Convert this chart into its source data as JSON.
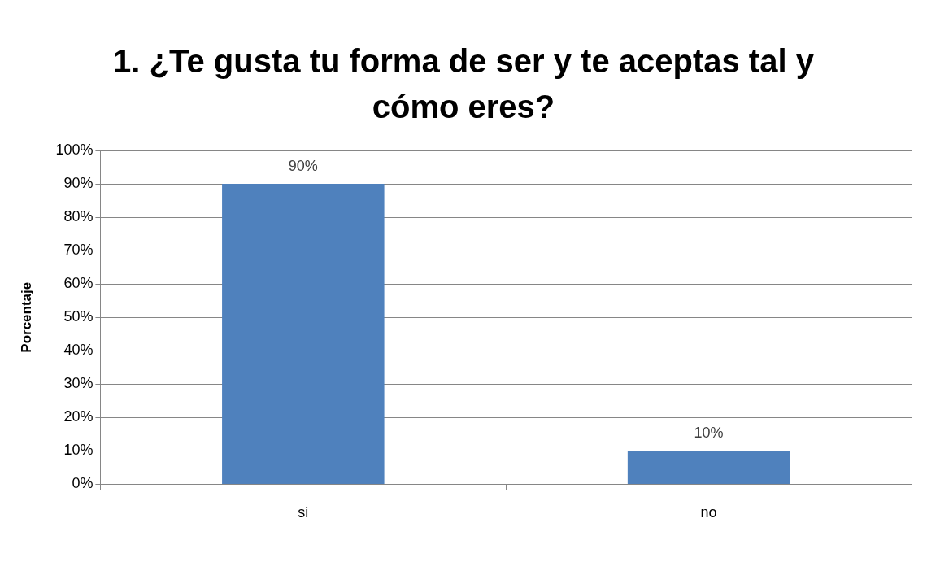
{
  "chart_data": {
    "type": "bar",
    "title": "1. ¿Te gusta tu forma de ser y te aceptas tal y cómo eres?",
    "ylabel": "Porcentaje",
    "categories": [
      "si",
      "no"
    ],
    "values": [
      90,
      10
    ],
    "color": "#4f81bd",
    "value_labels": [
      "90%",
      "10%"
    ],
    "ylim": [
      0,
      100
    ],
    "yticks": [
      {
        "value": 0,
        "label": "0%"
      },
      {
        "value": 10,
        "label": "10%"
      },
      {
        "value": 20,
        "label": "20%"
      },
      {
        "value": 30,
        "label": "30%"
      },
      {
        "value": 40,
        "label": "40%"
      },
      {
        "value": 50,
        "label": "50%"
      },
      {
        "value": 60,
        "label": "60%"
      },
      {
        "value": 70,
        "label": "70%"
      },
      {
        "value": 80,
        "label": "80%"
      },
      {
        "value": 90,
        "label": "90%"
      },
      {
        "value": 100,
        "label": "100%"
      }
    ],
    "grid": "y"
  }
}
